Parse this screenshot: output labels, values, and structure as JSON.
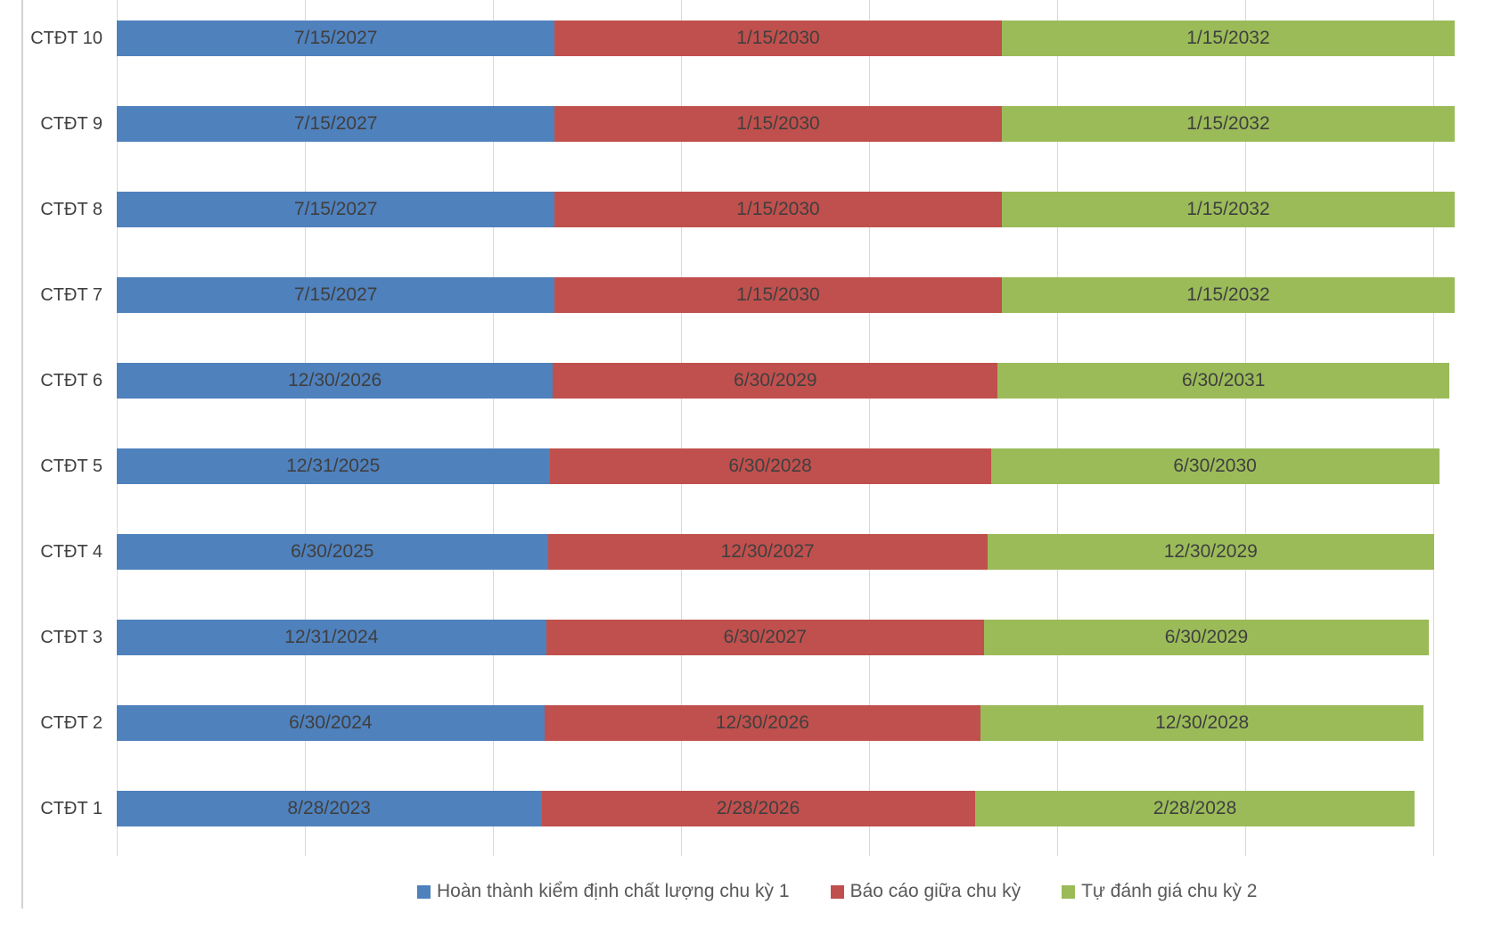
{
  "colors": {
    "phase1": "#4f81bd",
    "phase2": "#c0504d",
    "phase3": "#9bbb59",
    "gridline": "#d9d9d9",
    "bar_label_text": "#3f3f3f",
    "category_label_text": "#404040",
    "legend_text": "#595959"
  },
  "legend": {
    "items": [
      {
        "label": "Hoàn thành kiểm định chất lượng chu kỳ 1",
        "color": "#4f81bd"
      },
      {
        "label": "Báo cáo giữa chu kỳ",
        "color": "#c0504d"
      },
      {
        "label": "Tự đánh giá chu kỳ 2",
        "color": "#9bbb59"
      }
    ]
  },
  "rows": [
    {
      "label": "CTĐT 10",
      "milestones": [
        "7/15/2027",
        "1/15/2030",
        "1/15/2032"
      ]
    },
    {
      "label": "CTĐT 9",
      "milestones": [
        "7/15/2027",
        "1/15/2030",
        "1/15/2032"
      ]
    },
    {
      "label": "CTĐT 8",
      "milestones": [
        "7/15/2027",
        "1/15/2030",
        "1/15/2032"
      ]
    },
    {
      "label": "CTĐT 7",
      "milestones": [
        "7/15/2027",
        "1/15/2030",
        "1/15/2032"
      ]
    },
    {
      "label": "CTĐT 6",
      "milestones": [
        "12/30/2026",
        "6/30/2029",
        "6/30/2031"
      ]
    },
    {
      "label": "CTĐT 5",
      "milestones": [
        "12/31/2025",
        "6/30/2028",
        "6/30/2030"
      ]
    },
    {
      "label": "CTĐT 4",
      "milestones": [
        "6/30/2025",
        "12/30/2027",
        "12/30/2029"
      ]
    },
    {
      "label": "CTĐT 3",
      "milestones": [
        "12/31/2024",
        "6/30/2027",
        "6/30/2029"
      ]
    },
    {
      "label": "CTĐT 2",
      "milestones": [
        "6/30/2024",
        "12/30/2026",
        "12/30/2028"
      ]
    },
    {
      "label": "CTĐT 1",
      "milestones": [
        "8/28/2023",
        "2/28/2026",
        "2/28/2028"
      ]
    }
  ],
  "chart_data": {
    "type": "bar",
    "subtype": "horizontal-stacked (Gantt-style accreditation timeline)",
    "title": "",
    "xlabel": "",
    "ylabel": "",
    "categories_top_to_bottom": [
      "CTĐT 10",
      "CTĐT 9",
      "CTĐT 8",
      "CTĐT 7",
      "CTĐT 6",
      "CTĐT 5",
      "CTĐT 4",
      "CTĐT 3",
      "CTĐT 2",
      "CTĐT 1"
    ],
    "series": [
      {
        "name": "Hoàn thành kiểm định chất lượng chu kỳ 1",
        "color": "#4f81bd",
        "data_labels_top_to_bottom": [
          "7/15/2027",
          "7/15/2027",
          "7/15/2027",
          "7/15/2027",
          "12/30/2026",
          "12/31/2025",
          "6/30/2025",
          "12/31/2024",
          "6/30/2024",
          "8/28/2023"
        ]
      },
      {
        "name": "Báo cáo giữa chu kỳ",
        "color": "#c0504d",
        "data_labels_top_to_bottom": [
          "1/15/2030",
          "1/15/2030",
          "1/15/2030",
          "1/15/2030",
          "6/30/2029",
          "6/30/2028",
          "12/30/2027",
          "6/30/2027",
          "12/30/2026",
          "2/28/2026"
        ]
      },
      {
        "name": "Tự đánh giá chu kỳ 2",
        "color": "#9bbb59",
        "data_labels_top_to_bottom": [
          "1/15/2032",
          "1/15/2032",
          "1/15/2032",
          "1/15/2032",
          "6/30/2031",
          "6/30/2030",
          "12/30/2029",
          "6/30/2029",
          "12/30/2028",
          "2/28/2028"
        ]
      }
    ],
    "value_encoding": "Each stacked segment length is proportional to the Excel date-serial number of its milestone date (days since 1899-12-30); data labels show the milestone dates.",
    "x_axis": {
      "tick_labels_visible": false,
      "gridlines": true,
      "gridline_spacing_value_units": 20000
    },
    "legend_position": "bottom"
  }
}
